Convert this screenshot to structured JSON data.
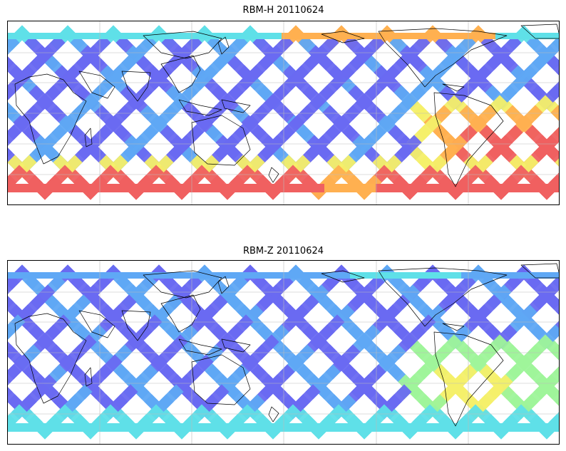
{
  "panels": [
    {
      "id": "h",
      "title": "RBM-H 20110624",
      "colors": {
        "pacific": "#6a6af2",
        "south": "#ff9060",
        "north": "#ffb050",
        "mid": "#5fa8f5"
      }
    },
    {
      "id": "z",
      "title": "RBM-Z 20110624",
      "colors": {
        "pacific": "#6a6af2",
        "south": "#7fe6d0",
        "north": "#7ff0d8",
        "mid": "#5fa8f5"
      }
    }
  ],
  "palette": {
    "swath_blue": "#6a6af2",
    "swath_lightblue": "#5fa8f5",
    "swath_cyan": "#5fe0e8",
    "swath_green": "#9ff59a",
    "swath_yellow": "#f5f06a",
    "swath_orange": "#ffb050",
    "swath_red": "#f06060",
    "coast": "#000000",
    "grid": "#bbbbbb"
  }
}
